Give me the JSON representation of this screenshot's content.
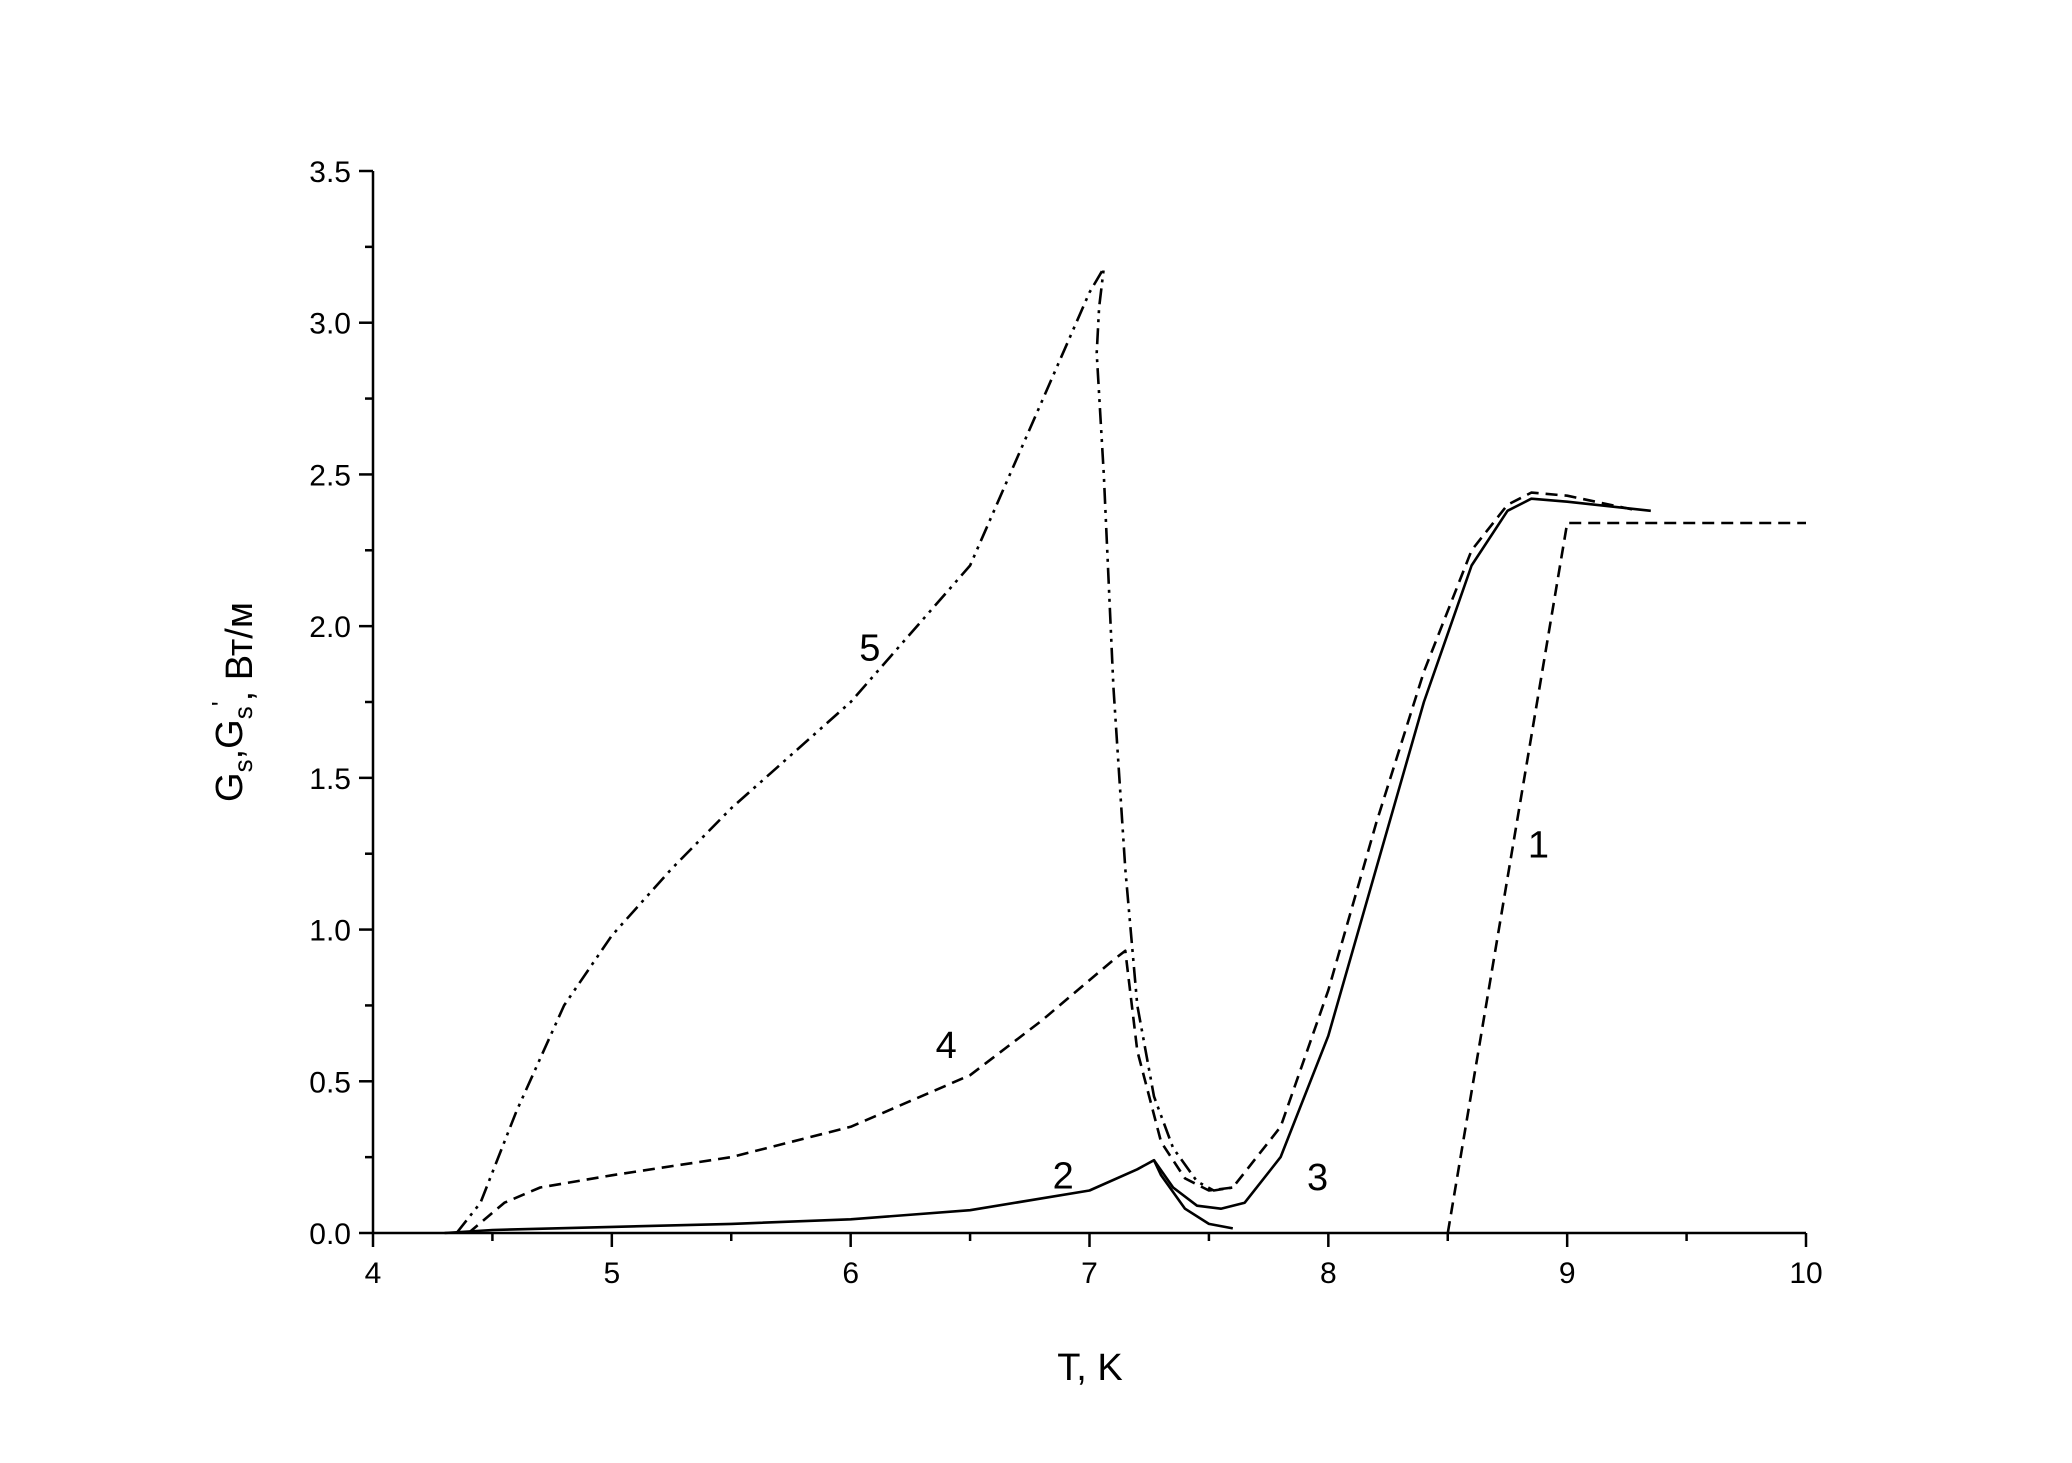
{
  "chart_data": {
    "type": "line",
    "x_label": "T, K",
    "y_label_parts": [
      {
        "text": "G",
        "sub": false
      },
      {
        "text": "s",
        "sub": true
      },
      {
        "text": ",G",
        "sub": false
      },
      {
        "text": "s",
        "sub": true
      },
      {
        "text": "'",
        "sup": true
      },
      {
        "text": ", Вт/м",
        "sub": false
      }
    ],
    "xlim": [
      4,
      10
    ],
    "ylim": [
      0,
      3.5
    ],
    "xticks": [
      4,
      5,
      6,
      7,
      8,
      9,
      10
    ],
    "xticks_minor": [
      4.5,
      5.5,
      6.5,
      7.5,
      8.5,
      9.5
    ],
    "yticks": [
      {
        "value": 0,
        "label": "0.0"
      },
      0.5,
      {
        "value": 1,
        "label": "1.0"
      },
      1.5,
      {
        "value": 2,
        "label": "2.0"
      },
      2.5,
      {
        "value": 3,
        "label": "3.0"
      },
      3.5
    ],
    "yticks_minor": [
      0.25,
      0.75,
      1.25,
      1.75,
      2.25,
      2.75,
      3.25
    ],
    "series": [
      {
        "name": "1",
        "color": "#000000",
        "dash": "dashed",
        "x": [
          8.5,
          9.0,
          10.0
        ],
        "values": [
          0,
          2.34,
          2.34
        ]
      },
      {
        "name": "2",
        "color": "#000000",
        "dash": "solid",
        "x": [
          4.3,
          4.5,
          5.0,
          5.5,
          6.0,
          6.5,
          7.0,
          7.2,
          7.27,
          7.3,
          7.4,
          7.5,
          7.6
        ],
        "values": [
          0,
          0.01,
          0.02,
          0.03,
          0.045,
          0.075,
          0.14,
          0.21,
          0.24,
          0.19,
          0.08,
          0.03,
          0.015
        ]
      },
      {
        "name": "3",
        "color": "#000000",
        "dash": "solid",
        "x": [
          7.27,
          7.35,
          7.45,
          7.55,
          7.65,
          7.8,
          8.0,
          8.2,
          8.4,
          8.6,
          8.75,
          8.85,
          9.0,
          9.35
        ],
        "values": [
          0.24,
          0.15,
          0.09,
          0.08,
          0.1,
          0.25,
          0.65,
          1.2,
          1.75,
          2.2,
          2.38,
          2.42,
          2.41,
          2.38
        ]
      },
      {
        "name": "4",
        "color": "#000000",
        "dash": "dashed",
        "x": [
          4.4,
          4.55,
          4.7,
          5.0,
          5.5,
          6.0,
          6.5,
          6.8,
          7.1,
          7.15,
          7.2,
          7.3,
          7.4,
          7.5,
          7.6,
          7.8,
          8.0,
          8.2,
          8.4,
          8.6,
          8.75,
          8.85,
          9.0,
          9.3
        ],
        "values": [
          0,
          0.1,
          0.15,
          0.19,
          0.25,
          0.35,
          0.52,
          0.7,
          0.9,
          0.93,
          0.6,
          0.3,
          0.18,
          0.14,
          0.15,
          0.35,
          0.8,
          1.35,
          1.85,
          2.25,
          2.4,
          2.44,
          2.43,
          2.38
        ]
      },
      {
        "name": "5",
        "color": "#000000",
        "dash": "dashdotdot",
        "x": [
          4.35,
          4.45,
          4.6,
          4.8,
          5.0,
          5.25,
          5.5,
          6.0,
          6.5,
          7.0,
          7.06,
          7.04,
          7.03,
          7.06,
          7.1,
          7.15,
          7.2,
          7.27,
          7.35,
          7.45,
          7.52,
          7.6
        ],
        "values": [
          0,
          0.1,
          0.4,
          0.75,
          0.98,
          1.2,
          1.4,
          1.75,
          2.2,
          3.1,
          3.18,
          3.05,
          2.9,
          2.5,
          1.8,
          1.2,
          0.75,
          0.45,
          0.28,
          0.17,
          0.14,
          0.15
        ]
      }
    ]
  }
}
